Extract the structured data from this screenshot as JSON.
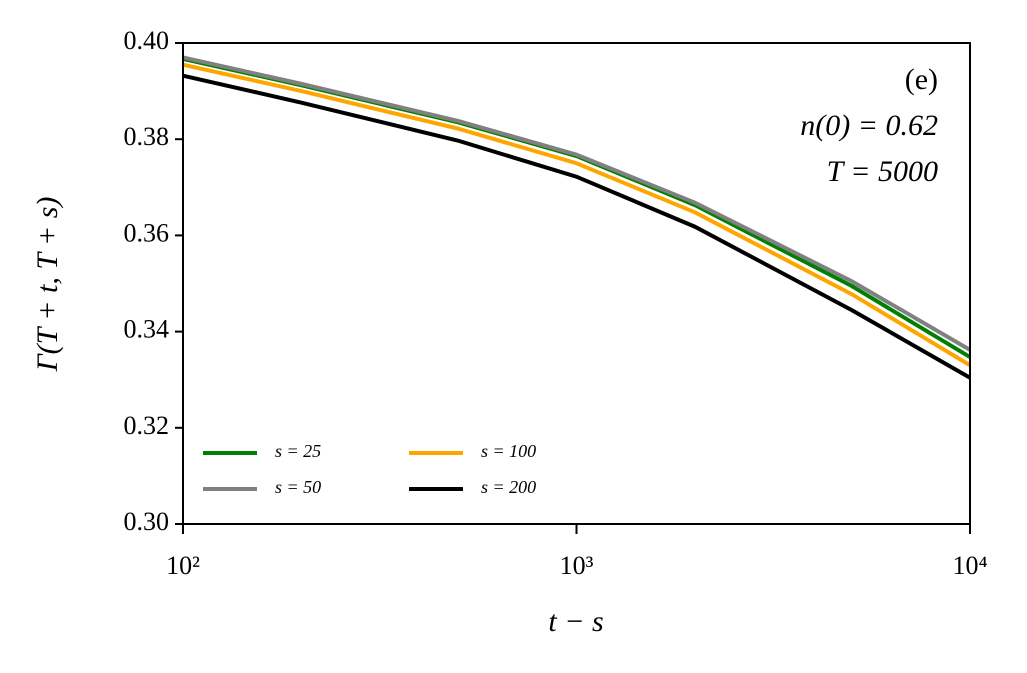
{
  "chart_data": {
    "type": "line",
    "annotations": [
      "(e)",
      "n(0) = 0.62",
      "T = 5000"
    ],
    "xlabel": "t − s",
    "ylabel": "Γ(T + t, T + s)",
    "x": [
      100,
      200,
      500,
      1000,
      2000,
      5000,
      10000
    ],
    "series": [
      {
        "name": "s = 25",
        "color": "#008000",
        "values": [
          0.3967,
          0.3912,
          0.3835,
          0.3765,
          0.3663,
          0.3495,
          0.3347
        ]
      },
      {
        "name": "s = 50",
        "color": "#808080",
        "values": [
          0.397,
          0.3915,
          0.3838,
          0.3768,
          0.3668,
          0.3505,
          0.3362
        ]
      },
      {
        "name": "s = 100",
        "color": "#ffa500",
        "values": [
          0.3955,
          0.39,
          0.3822,
          0.375,
          0.3648,
          0.3478,
          0.333
        ]
      },
      {
        "name": "s = 200",
        "color": "#000000",
        "values": [
          0.3932,
          0.3876,
          0.3797,
          0.3722,
          0.3618,
          0.3445,
          0.3304
        ]
      }
    ],
    "xlim": [
      100,
      10000
    ],
    "xscale": "log",
    "xticks": [
      {
        "value": 100,
        "label": "10²"
      },
      {
        "value": 1000,
        "label": "10³"
      },
      {
        "value": 10000,
        "label": "10⁴"
      }
    ],
    "ylim": [
      0.3,
      0.4
    ],
    "yticks": [
      {
        "value": 0.3,
        "label": "0.30"
      },
      0.32,
      0.34,
      0.36,
      0.38,
      {
        "value": 0.4,
        "label": "0.40"
      }
    ],
    "legend": "lower left",
    "grid": false
  }
}
